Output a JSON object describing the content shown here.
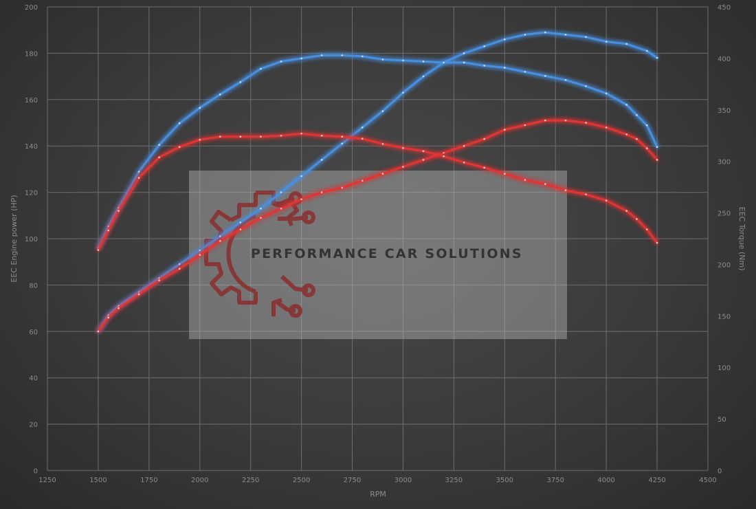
{
  "colors": {
    "blue": "#4a8fe0",
    "red": "#e03434",
    "grid": "#6e6e6e",
    "text": "#8c8c8c"
  },
  "watermark": {
    "text": "PERFORMANCE CAR SOLUTIONS",
    "logo": "gear-circuit-logo"
  },
  "chart_data": {
    "type": "line",
    "xlabel": "RPM",
    "ylabel_left": "EEC Engine power (HP)",
    "ylabel_right": "EEC Torque (Nm)",
    "xlim": [
      1250,
      4500
    ],
    "ylim_left": [
      0,
      200
    ],
    "ylim_right": [
      0,
      450
    ],
    "x_ticks": [
      1250,
      1500,
      1750,
      2000,
      2250,
      2500,
      2750,
      3000,
      3250,
      3500,
      3750,
      4000,
      4250,
      4500
    ],
    "y_ticks_left": [
      0,
      20,
      40,
      60,
      80,
      100,
      120,
      140,
      160,
      180,
      200
    ],
    "y_ticks_right": [
      0,
      50,
      100,
      150,
      200,
      250,
      300,
      350,
      400,
      450
    ],
    "grid": true,
    "series": [
      {
        "color": "blue",
        "axis": "left",
        "x": [
          1500,
          1550,
          1600,
          1700,
          1800,
          1900,
          2000,
          2100,
          2200,
          2300,
          2400,
          2500,
          2600,
          2700,
          2800,
          2900,
          3000,
          3100,
          3200,
          3300,
          3400,
          3500,
          3600,
          3700,
          3800,
          3900,
          4000,
          4100,
          4200,
          4250
        ],
        "y": [
          60,
          67,
          71,
          77,
          83,
          89,
          95,
          101,
          107,
          113,
          120,
          127,
          134,
          141,
          148,
          155,
          163,
          170,
          176,
          180,
          183,
          186,
          188,
          189,
          188,
          187,
          185,
          184,
          181,
          178
        ]
      },
      {
        "color": "blue",
        "axis": "right",
        "x": [
          1500,
          1550,
          1600,
          1700,
          1800,
          1900,
          2000,
          2100,
          2200,
          2300,
          2400,
          2500,
          2600,
          2700,
          2800,
          2900,
          3000,
          3100,
          3200,
          3300,
          3400,
          3500,
          3600,
          3700,
          3800,
          3900,
          4000,
          4100,
          4150,
          4200,
          4250
        ],
        "y": [
          216,
          237,
          255,
          290,
          316,
          337,
          352,
          365,
          377,
          390,
          397,
          400,
          403,
          403,
          402,
          399,
          398,
          397,
          396,
          396,
          393,
          391,
          387,
          383,
          379,
          373,
          366,
          355,
          345,
          335,
          314
        ]
      },
      {
        "color": "red",
        "axis": "left",
        "x": [
          1500,
          1550,
          1600,
          1700,
          1800,
          1900,
          2000,
          2100,
          2200,
          2300,
          2400,
          2500,
          2600,
          2700,
          2800,
          2900,
          3000,
          3100,
          3200,
          3300,
          3400,
          3500,
          3600,
          3700,
          3800,
          3900,
          4000,
          4100,
          4150,
          4200,
          4250
        ],
        "y": [
          60,
          66,
          70,
          76,
          82,
          87,
          93,
          99,
          104,
          109,
          113,
          117,
          120,
          122,
          125,
          128,
          131,
          134,
          137,
          140,
          143,
          147,
          149,
          151,
          151,
          150,
          148,
          145,
          143,
          139,
          134
        ]
      },
      {
        "color": "red",
        "axis": "right",
        "x": [
          1500,
          1550,
          1600,
          1700,
          1800,
          1900,
          2000,
          2100,
          2200,
          2300,
          2400,
          2500,
          2600,
          2700,
          2800,
          2900,
          3000,
          3100,
          3200,
          3300,
          3400,
          3500,
          3600,
          3700,
          3800,
          3900,
          4000,
          4100,
          4150,
          4200,
          4250
        ],
        "y": [
          214,
          233,
          252,
          284,
          304,
          314,
          321,
          324,
          324,
          324,
          325,
          327,
          325,
          324,
          322,
          317,
          313,
          310,
          305,
          299,
          294,
          288,
          282,
          278,
          272,
          268,
          262,
          252,
          244,
          234,
          221
        ]
      }
    ]
  }
}
